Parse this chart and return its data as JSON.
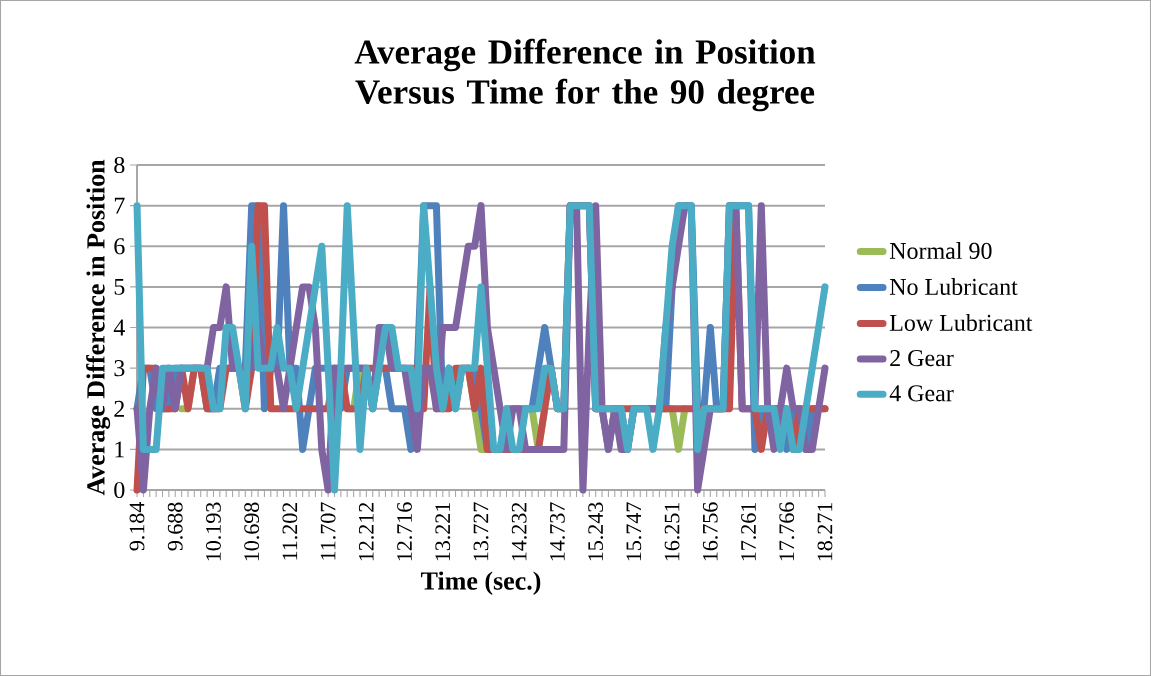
{
  "chart_data": {
    "type": "line",
    "title": "Average Difference in Position Versus Time for the 90 degree",
    "xlabel": "Time (sec.)",
    "ylabel": "Average Difference in Position",
    "categories": [
      "9.184",
      null,
      null,
      null,
      null,
      null,
      "9.688",
      null,
      null,
      null,
      null,
      null,
      "10.193",
      null,
      null,
      null,
      null,
      null,
      "10.698",
      null,
      null,
      null,
      null,
      null,
      "11.202",
      null,
      null,
      null,
      null,
      null,
      "11.707",
      null,
      null,
      null,
      null,
      null,
      "12.212",
      null,
      null,
      null,
      null,
      null,
      "12.716",
      null,
      null,
      null,
      null,
      null,
      "13.221",
      null,
      null,
      null,
      null,
      null,
      "13.727",
      null,
      null,
      null,
      null,
      null,
      "14.232",
      null,
      null,
      null,
      null,
      null,
      "14.737",
      null,
      null,
      null,
      null,
      null,
      "15.243",
      null,
      null,
      null,
      null,
      null,
      "15.747",
      null,
      null,
      null,
      null,
      null,
      "16.251",
      null,
      null,
      null,
      null,
      null,
      "16.756",
      null,
      null,
      null,
      null,
      null,
      "17.261",
      null,
      null,
      null,
      null,
      null,
      "17.766",
      null,
      null,
      null,
      null,
      null,
      "18.271"
    ],
    "series": [
      {
        "name": "Normal 90",
        "color": "#9bbb59",
        "values": [
          null,
          null,
          null,
          null,
          null,
          null,
          null,
          2,
          2,
          3,
          null,
          null,
          null,
          null,
          null,
          null,
          null,
          null,
          null,
          null,
          null,
          null,
          null,
          null,
          null,
          null,
          null,
          null,
          null,
          null,
          null,
          null,
          null,
          2,
          2,
          3,
          null,
          null,
          null,
          null,
          null,
          null,
          null,
          null,
          null,
          null,
          null,
          null,
          null,
          null,
          null,
          null,
          3,
          2,
          1,
          1,
          null,
          null,
          null,
          null,
          null,
          2,
          2,
          1,
          2,
          null,
          null,
          null,
          null,
          null,
          null,
          null,
          null,
          null,
          null,
          null,
          null,
          null,
          null,
          null,
          null,
          null,
          null,
          2,
          2,
          1,
          2,
          null,
          null,
          null,
          null,
          null,
          null,
          null,
          null,
          null,
          null,
          null,
          null,
          null,
          null,
          null,
          null,
          null,
          null,
          null,
          null,
          null,
          null
        ]
      },
      {
        "name": "No Lubricant",
        "color": "#4f81bd",
        "values": [
          2,
          3,
          3,
          2,
          2,
          2,
          3,
          3,
          3,
          3,
          3,
          2,
          2,
          3,
          3,
          3,
          3,
          3,
          7,
          7,
          2,
          3,
          3,
          7,
          3,
          3,
          1,
          2,
          3,
          3,
          3,
          3,
          2,
          3,
          3,
          3,
          3,
          2,
          3,
          3,
          2,
          2,
          2,
          1,
          3,
          7,
          7,
          7,
          2,
          3,
          2,
          3,
          3,
          3,
          2,
          1,
          1,
          1,
          2,
          2,
          2,
          2,
          2,
          3,
          4,
          3,
          2,
          2,
          7,
          7,
          7,
          7,
          2,
          2,
          1,
          2,
          2,
          1,
          2,
          2,
          2,
          2,
          2,
          2,
          5,
          7,
          7,
          7,
          2,
          2,
          4,
          2,
          2,
          7,
          7,
          7,
          7,
          1,
          2,
          2,
          2,
          2,
          1,
          2,
          2,
          1,
          2,
          2,
          2
        ]
      },
      {
        "name": "Low Lubricant",
        "color": "#c0504d",
        "values": [
          0,
          3,
          3,
          3,
          2,
          2,
          2,
          3,
          2,
          3,
          3,
          2,
          2,
          2,
          3,
          3,
          3,
          2,
          3,
          7,
          7,
          2,
          2,
          2,
          2,
          2,
          2,
          2,
          2,
          2,
          2,
          3,
          3,
          2,
          2,
          2,
          3,
          3,
          3,
          3,
          3,
          3,
          3,
          3,
          3,
          2,
          5,
          2,
          2,
          2,
          3,
          3,
          3,
          2,
          3,
          1,
          1,
          1,
          1,
          1,
          1,
          1,
          1,
          1,
          2,
          3,
          2,
          2,
          7,
          7,
          7,
          7,
          2,
          2,
          2,
          2,
          2,
          2,
          2,
          null,
          2,
          2,
          2,
          2,
          2,
          2,
          2,
          2,
          2,
          2,
          2,
          2,
          2,
          2,
          7,
          2,
          2,
          2,
          1,
          2,
          2,
          2,
          2,
          1,
          2,
          2,
          2,
          2,
          2
        ]
      },
      {
        "name": "2 Gear",
        "color": "#8064a2",
        "values": [
          2,
          0,
          2,
          3,
          2,
          3,
          2,
          3,
          3,
          3,
          3,
          3,
          4,
          4,
          5,
          3,
          3,
          3,
          3,
          4,
          3,
          3,
          3,
          2,
          3,
          4,
          5,
          5,
          4,
          1,
          0,
          3,
          3,
          3,
          3,
          3,
          3,
          2,
          4,
          4,
          3,
          3,
          3,
          2,
          1,
          3,
          3,
          2,
          4,
          4,
          4,
          5,
          6,
          6,
          7,
          4,
          3,
          2,
          1,
          2,
          2,
          1,
          1,
          1,
          1,
          1,
          1,
          1,
          7,
          7,
          0,
          4,
          7,
          2,
          1,
          2,
          1,
          1,
          2,
          2,
          2,
          2,
          2,
          4,
          5,
          6,
          7,
          7,
          0,
          1,
          2,
          2,
          2,
          7,
          7,
          2,
          2,
          2,
          7,
          2,
          1,
          2,
          3,
          2,
          2,
          1,
          1,
          2,
          3
        ]
      },
      {
        "name": "4 Gear",
        "color": "#4bacc6",
        "values": [
          7,
          1,
          1,
          1,
          3,
          3,
          3,
          3,
          3,
          3,
          3,
          3,
          2,
          2,
          4,
          4,
          3,
          2,
          6,
          3,
          3,
          3,
          4,
          3,
          3,
          2,
          3,
          4,
          5,
          6,
          3,
          0,
          3,
          7,
          4,
          1,
          3,
          2,
          3,
          4,
          4,
          3,
          3,
          3,
          2,
          7,
          5,
          3,
          2,
          3,
          2,
          3,
          3,
          3,
          5,
          3,
          1,
          1,
          2,
          1,
          1,
          2,
          2,
          2,
          3,
          3,
          2,
          2,
          7,
          7,
          7,
          7,
          2,
          2,
          2,
          2,
          2,
          1,
          2,
          2,
          2,
          1,
          2,
          4,
          6,
          7,
          7,
          7,
          1,
          2,
          2,
          2,
          2,
          7,
          7,
          7,
          7,
          2,
          2,
          2,
          2,
          1,
          2,
          1,
          1,
          2,
          3,
          4,
          5
        ]
      }
    ],
    "ylim": [
      0,
      8
    ],
    "yticks": [
      0,
      1,
      2,
      3,
      4,
      5,
      6,
      7,
      8
    ],
    "grid": "y",
    "legend": "right",
    "marker": "none",
    "line_style": "solid"
  }
}
